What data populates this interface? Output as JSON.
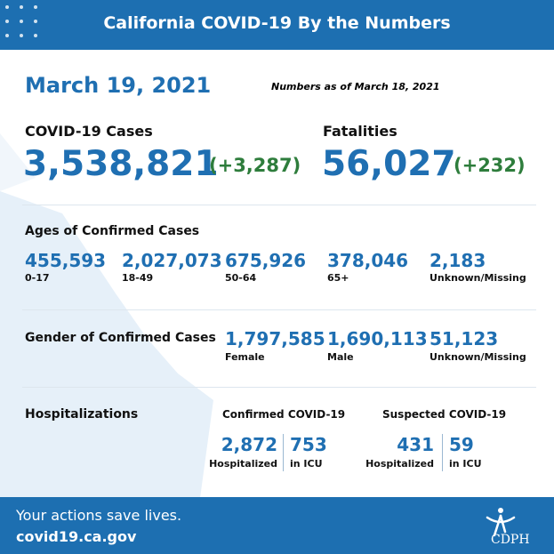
{
  "header": {
    "title": "California COVID-19 By the Numbers"
  },
  "date": "March 19, 2021",
  "as_of": "Numbers as of March 18, 2021",
  "cases": {
    "label": "COVID-19 Cases",
    "value": "3,538,821",
    "change": "(+3,287)"
  },
  "fatalities": {
    "label": "Fatalities",
    "value": "56,027",
    "change": "(+232)"
  },
  "ages": {
    "title": "Ages of Confirmed Cases",
    "items": [
      {
        "value": "455,593",
        "label": "0-17"
      },
      {
        "value": "2,027,073",
        "label": "18-49"
      },
      {
        "value": "675,926",
        "label": "50-64"
      },
      {
        "value": "378,046",
        "label": "65+"
      },
      {
        "value": "2,183",
        "label": "Unknown/Missing"
      }
    ]
  },
  "gender": {
    "title": "Gender of Confirmed Cases",
    "items": [
      {
        "value": "1,797,585",
        "label": "Female"
      },
      {
        "value": "1,690,113",
        "label": "Male"
      },
      {
        "value": "51,123",
        "label": "Unknown/Missing"
      }
    ]
  },
  "hospitalizations": {
    "title": "Hospitalizations",
    "confirmed": {
      "title": "Confirmed COVID-19",
      "items": [
        {
          "value": "2,872",
          "label": "Hospitalized"
        },
        {
          "value": "753",
          "label": "in ICU"
        }
      ]
    },
    "suspected": {
      "title": "Suspected COVID-19",
      "items": [
        {
          "value": "431",
          "label": "Hospitalized"
        },
        {
          "value": "59",
          "label": "in ICU"
        }
      ]
    }
  },
  "footer": {
    "tagline": "Your actions save lives.",
    "url": "covid19.ca.gov",
    "logo": "CDPH"
  }
}
